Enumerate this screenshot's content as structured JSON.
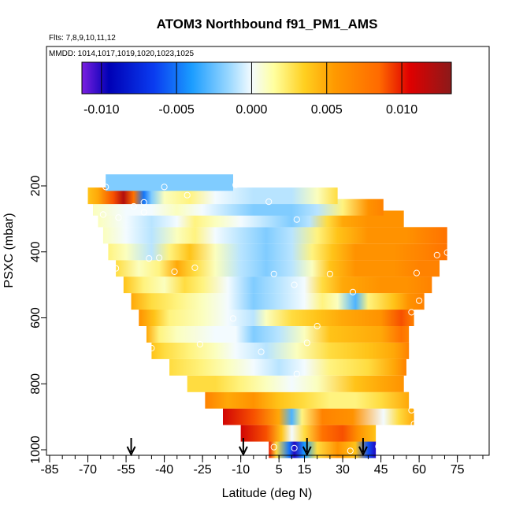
{
  "chart_data": {
    "type": "heatmap",
    "title": "ATOM3 Northbound f91_PM1_AMS",
    "flights_note": "Flts: 7,8,9,10,11,12",
    "date_note": "MMDD: 1014,1017,1019,1020,1023,1025",
    "xlabel": "Latitude (deg N)",
    "ylabel": "PSXC (mbar)",
    "xlim": [
      -85,
      85
    ],
    "ylim": [
      1000,
      100
    ],
    "x_ticks": [
      "-85",
      "-70",
      "-55",
      "-40",
      "-25",
      "-10",
      "5",
      "15",
      "30",
      "45",
      "60",
      "75"
    ],
    "x_tick_values": [
      -85,
      -70,
      -55,
      -40,
      -25,
      -10,
      5,
      15,
      30,
      45,
      60,
      75
    ],
    "y_ticks": [
      "200",
      "400",
      "600",
      "800",
      "1000"
    ],
    "y_tick_values": [
      200,
      400,
      600,
      800,
      1000
    ],
    "colorbar": {
      "range": [
        -0.0113,
        0.0133
      ],
      "tick_values": [
        -0.01,
        -0.005,
        0.0,
        0.005,
        0.01
      ],
      "tick_labels": [
        "-0.010",
        "-0.005",
        "0.000",
        "0.005",
        "0.010"
      ],
      "stops": [
        {
          "v": -0.0113,
          "color": "#7b1fe0"
        },
        {
          "v": -0.0095,
          "color": "#0000b5"
        },
        {
          "v": -0.0065,
          "color": "#0a3cf0"
        },
        {
          "v": -0.004,
          "color": "#1a9cff"
        },
        {
          "v": -0.0015,
          "color": "#9ad8ff"
        },
        {
          "v": 0.0,
          "color": "#f3fbff"
        },
        {
          "v": 0.0015,
          "color": "#ffff9e"
        },
        {
          "v": 0.0035,
          "color": "#ffd020"
        },
        {
          "v": 0.0055,
          "color": "#ff9a00"
        },
        {
          "v": 0.0085,
          "color": "#ff6a00"
        },
        {
          "v": 0.0105,
          "color": "#e00000"
        },
        {
          "v": 0.0133,
          "color": "#8b1a1a"
        }
      ]
    },
    "arrows_lat": [
      -53,
      -9,
      16,
      38
    ],
    "rows": [
      {
        "p": 1000,
        "x0": 1,
        "x1": 43,
        "knots": [
          [
            1,
            0.01
          ],
          [
            4,
            0.003
          ],
          [
            9,
            -0.005
          ],
          [
            11,
            -0.01
          ],
          [
            15,
            -0.004
          ],
          [
            20,
            0.003
          ],
          [
            28,
            0.006
          ],
          [
            35,
            0.004
          ],
          [
            40,
            -0.006
          ],
          [
            43,
            -0.01
          ]
        ]
      },
      {
        "p": 950,
        "x0": -10,
        "x1": 43,
        "knots": [
          [
            -10,
            0.011
          ],
          [
            0,
            0.009
          ],
          [
            6,
            0.004
          ],
          [
            10,
            0.0
          ],
          [
            15,
            0.003
          ],
          [
            22,
            0.008
          ],
          [
            30,
            0.009
          ],
          [
            36,
            0.006
          ],
          [
            43,
            0.004
          ]
        ]
      },
      {
        "p": 900,
        "x0": -17,
        "x1": 58,
        "knots": [
          [
            -17,
            0.011
          ],
          [
            -5,
            0.009
          ],
          [
            5,
            0.005
          ],
          [
            10,
            -0.003
          ],
          [
            14,
            0.002
          ],
          [
            22,
            0.007
          ],
          [
            34,
            0.006
          ],
          [
            46,
            0.0
          ],
          [
            52,
            0.003
          ],
          [
            58,
            0.005
          ]
        ]
      },
      {
        "p": 850,
        "x0": -24,
        "x1": 56,
        "knots": [
          [
            -24,
            0.007
          ],
          [
            -15,
            0.005
          ],
          [
            -5,
            0.006
          ],
          [
            5,
            0.004
          ],
          [
            15,
            0.003
          ],
          [
            25,
            0.002
          ],
          [
            35,
            0.002
          ],
          [
            45,
            0.003
          ],
          [
            56,
            0.005
          ]
        ]
      },
      {
        "p": 800,
        "x0": -31,
        "x1": 54,
        "knots": [
          [
            -31,
            0.003
          ],
          [
            -20,
            0.003
          ],
          [
            -10,
            0.002
          ],
          [
            0,
            0.001
          ],
          [
            10,
            0.0
          ],
          [
            20,
            0.001
          ],
          [
            35,
            0.004
          ],
          [
            45,
            0.005
          ],
          [
            54,
            0.006
          ]
        ]
      },
      {
        "p": 750,
        "x0": -38,
        "x1": 55,
        "knots": [
          [
            -38,
            0.003
          ],
          [
            -25,
            0.002
          ],
          [
            -15,
            0.001
          ],
          [
            -5,
            0.0
          ],
          [
            5,
            -0.001
          ],
          [
            15,
            0.0
          ],
          [
            25,
            0.002
          ],
          [
            40,
            0.003
          ],
          [
            50,
            0.005
          ],
          [
            55,
            0.007
          ]
        ]
      },
      {
        "p": 700,
        "x0": -45,
        "x1": 56,
        "knots": [
          [
            -45,
            0.004
          ],
          [
            -40,
            0.003
          ],
          [
            -30,
            0.002
          ],
          [
            -20,
            0.001
          ],
          [
            -12,
            0.0
          ],
          [
            0,
            -0.001
          ],
          [
            12,
            0.001
          ],
          [
            25,
            0.003
          ],
          [
            40,
            0.004
          ],
          [
            50,
            0.005
          ],
          [
            56,
            0.007
          ]
        ]
      },
      {
        "p": 650,
        "x0": -47,
        "x1": 56,
        "knots": [
          [
            -47,
            0.005
          ],
          [
            -42,
            0.002
          ],
          [
            -35,
            0.001
          ],
          [
            -20,
            0.0
          ],
          [
            -12,
            0.0
          ],
          [
            -5,
            -0.002
          ],
          [
            5,
            -0.001
          ],
          [
            15,
            0.001
          ],
          [
            25,
            0.004
          ],
          [
            45,
            0.005
          ],
          [
            53,
            0.008
          ],
          [
            56,
            0.007
          ]
        ]
      },
      {
        "p": 600,
        "x0": -50,
        "x1": 58,
        "knots": [
          [
            -50,
            0.006
          ],
          [
            -44,
            0.004
          ],
          [
            -38,
            0.002
          ],
          [
            -25,
            0.001
          ],
          [
            -15,
            0.0
          ],
          [
            -5,
            -0.001
          ],
          [
            0,
            0.001
          ],
          [
            10,
            0.003
          ],
          [
            20,
            0.004
          ],
          [
            30,
            0.005
          ],
          [
            45,
            0.006
          ],
          [
            53,
            0.009
          ],
          [
            58,
            0.007
          ]
        ]
      },
      {
        "p": 550,
        "x0": -53,
        "x1": 62,
        "knots": [
          [
            -53,
            0.005
          ],
          [
            -45,
            0.003
          ],
          [
            -35,
            0.002
          ],
          [
            -25,
            0.001
          ],
          [
            -15,
            0.0
          ],
          [
            -5,
            -0.002
          ],
          [
            5,
            -0.001
          ],
          [
            15,
            0.0
          ],
          [
            22,
            0.002
          ],
          [
            28,
            0.001
          ],
          [
            35,
            -0.003
          ],
          [
            40,
            0.002
          ],
          [
            50,
            0.004
          ],
          [
            56,
            0.006
          ],
          [
            62,
            0.007
          ]
        ]
      },
      {
        "p": 500,
        "x0": -56,
        "x1": 65,
        "knots": [
          [
            -56,
            0.004
          ],
          [
            -48,
            0.002
          ],
          [
            -40,
            0.001
          ],
          [
            -32,
            0.003
          ],
          [
            -25,
            0.002
          ],
          [
            -15,
            0.0
          ],
          [
            -5,
            -0.002
          ],
          [
            5,
            -0.001
          ],
          [
            15,
            0.0
          ],
          [
            22,
            0.003
          ],
          [
            30,
            0.005
          ],
          [
            45,
            0.006
          ],
          [
            55,
            0.006
          ],
          [
            65,
            0.007
          ]
        ]
      },
      {
        "p": 450,
        "x0": -59,
        "x1": 68,
        "knots": [
          [
            -59,
            0.003
          ],
          [
            -50,
            0.001
          ],
          [
            -42,
            0.002
          ],
          [
            -35,
            0.005
          ],
          [
            -28,
            0.003
          ],
          [
            -20,
            0.001
          ],
          [
            -10,
            -0.001
          ],
          [
            0,
            -0.002
          ],
          [
            10,
            -0.001
          ],
          [
            18,
            0.001
          ],
          [
            25,
            0.004
          ],
          [
            35,
            0.006
          ],
          [
            50,
            0.006
          ],
          [
            60,
            0.007
          ],
          [
            68,
            0.007
          ]
        ]
      },
      {
        "p": 400,
        "x0": -62,
        "x1": 71,
        "knots": [
          [
            -62,
            0.002
          ],
          [
            -55,
            0.001
          ],
          [
            -45,
            -0.001
          ],
          [
            -38,
            0.002
          ],
          [
            -30,
            0.004
          ],
          [
            -20,
            0.001
          ],
          [
            -10,
            -0.001
          ],
          [
            0,
            -0.002
          ],
          [
            10,
            -0.001
          ],
          [
            18,
            0.002
          ],
          [
            26,
            0.004
          ],
          [
            35,
            0.006
          ],
          [
            50,
            0.006
          ],
          [
            62,
            0.007
          ],
          [
            71,
            0.008
          ]
        ]
      },
      {
        "p": 350,
        "x0": -64,
        "x1": 71,
        "knots": [
          [
            -64,
            0.001
          ],
          [
            -55,
            0.0
          ],
          [
            -45,
            -0.001
          ],
          [
            -35,
            0.001
          ],
          [
            -28,
            0.002
          ],
          [
            -20,
            0.0
          ],
          [
            -10,
            -0.001
          ],
          [
            0,
            -0.002
          ],
          [
            10,
            -0.001
          ],
          [
            20,
            0.002
          ],
          [
            28,
            0.004
          ],
          [
            40,
            0.006
          ],
          [
            55,
            0.006
          ],
          [
            71,
            0.008
          ]
        ]
      },
      {
        "p": 300,
        "x0": -66,
        "x1": 54,
        "knots": [
          [
            -66,
            0.001
          ],
          [
            -55,
            0.0
          ],
          [
            -45,
            -0.001
          ],
          [
            -35,
            0.0
          ],
          [
            -28,
            0.002
          ],
          [
            -20,
            0.001
          ],
          [
            -10,
            0.0
          ],
          [
            0,
            -0.001
          ],
          [
            10,
            -0.002
          ],
          [
            17,
            -0.001
          ],
          [
            24,
            0.003
          ],
          [
            30,
            0.005
          ],
          [
            40,
            0.006
          ],
          [
            54,
            0.006
          ]
        ]
      },
      {
        "p": 265,
        "x0": -68,
        "x1": 46,
        "knots": [
          [
            -68,
            0.001
          ],
          [
            -55,
            0.0
          ],
          [
            -45,
            0.0
          ],
          [
            -35,
            0.001
          ],
          [
            -25,
            0.0
          ],
          [
            -15,
            -0.001
          ],
          [
            -5,
            -0.002
          ],
          [
            10,
            -0.002
          ],
          [
            20,
            -0.001
          ],
          [
            30,
            0.002
          ],
          [
            40,
            0.006
          ],
          [
            46,
            0.007
          ]
        ]
      },
      {
        "p": 230,
        "x0": -70,
        "x1": 28,
        "knots": [
          [
            -70,
            0.004
          ],
          [
            -66,
            0.005
          ],
          [
            -60,
            0.009
          ],
          [
            -56,
            0.012
          ],
          [
            -52,
            0.008
          ],
          [
            -48,
            -0.005
          ],
          [
            -45,
            -0.002
          ],
          [
            -40,
            0.001
          ],
          [
            -30,
            0.002
          ],
          [
            -20,
            0.0
          ],
          [
            -5,
            -0.001
          ],
          [
            10,
            -0.001
          ],
          [
            20,
            0.001
          ],
          [
            28,
            0.003
          ]
        ]
      },
      {
        "p": 190,
        "x0": -63,
        "x1": -13,
        "knots": [
          [
            -63,
            -0.002
          ],
          [
            -40,
            -0.002
          ],
          [
            -13,
            -0.002
          ]
        ]
      }
    ],
    "markers": [
      [
        -63,
        203
      ],
      [
        -40,
        203
      ],
      [
        -12,
        197
      ],
      [
        -48,
        250
      ],
      [
        -52,
        262
      ],
      [
        -31,
        228
      ],
      [
        1,
        248
      ],
      [
        30,
        225
      ],
      [
        -64,
        287
      ],
      [
        -58,
        296
      ],
      [
        -48,
        280
      ],
      [
        12,
        302
      ],
      [
        -46,
        420
      ],
      [
        -42,
        418
      ],
      [
        -59,
        450
      ],
      [
        -36,
        460
      ],
      [
        -28,
        448
      ],
      [
        3,
        467
      ],
      [
        11,
        500
      ],
      [
        25,
        467
      ],
      [
        67,
        410
      ],
      [
        71,
        402
      ],
      [
        59,
        464
      ],
      [
        34,
        522
      ],
      [
        60,
        548
      ],
      [
        57,
        583
      ],
      [
        -13,
        602
      ],
      [
        -26,
        680
      ],
      [
        20,
        625
      ],
      [
        -45,
        692
      ],
      [
        16,
        676
      ],
      [
        -2,
        703
      ],
      [
        12,
        770
      ],
      [
        57,
        880
      ],
      [
        58,
        922
      ],
      [
        3,
        992
      ],
      [
        11,
        995
      ],
      [
        33,
        1003
      ],
      [
        44,
        990
      ]
    ]
  }
}
